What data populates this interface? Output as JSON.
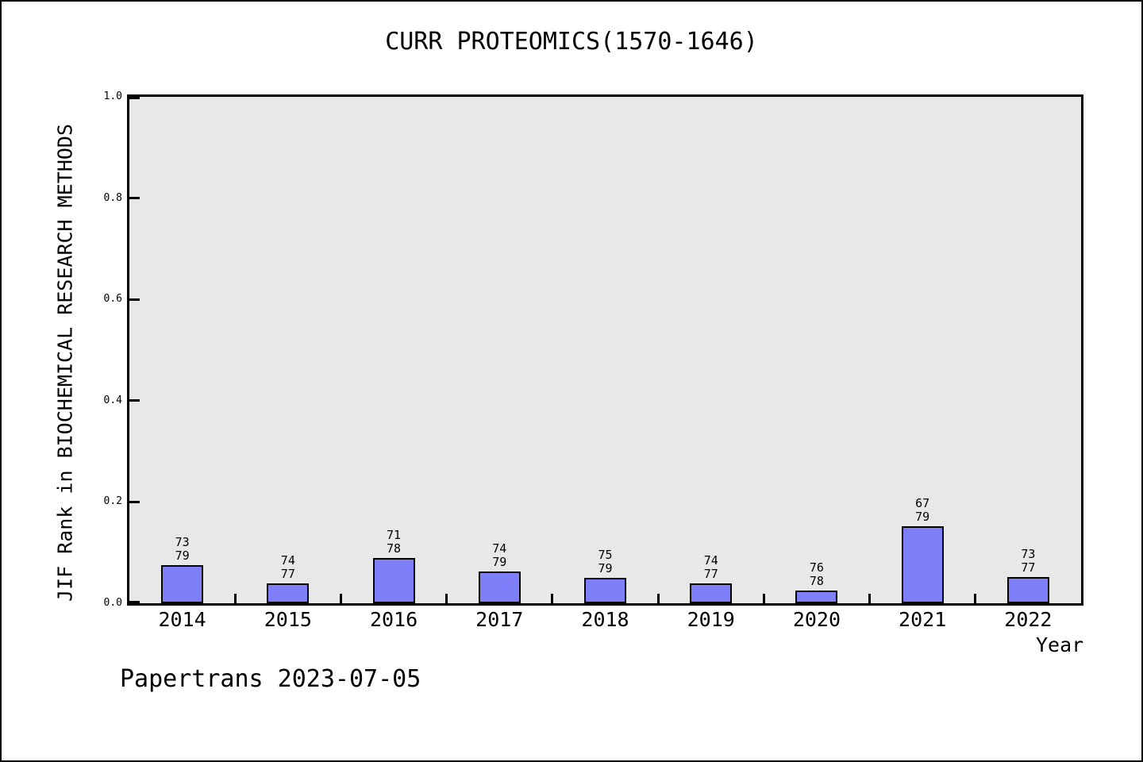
{
  "page": {
    "footer": "Papertrans 2023-07-05"
  },
  "chart_data": {
    "type": "bar",
    "title": "CURR PROTEOMICS(1570-1646)",
    "xlabel": "Year",
    "ylabel": "JIF Rank in BIOCHEMICAL RESEARCH METHODS",
    "ylim": [
      0.0,
      1.0
    ],
    "yticks": [
      "0.0",
      "0.2",
      "0.4",
      "0.6",
      "0.8",
      "1.0"
    ],
    "grid": false,
    "legend_position": "none",
    "plot_background": "#e8e8e8",
    "bar_fill": "#7f7ffa",
    "bar_border": "#000000",
    "categories": [
      "2014",
      "2015",
      "2016",
      "2017",
      "2018",
      "2019",
      "2020",
      "2021",
      "2022"
    ],
    "bars": [
      {
        "year": "2014",
        "rank": "73",
        "total": "79",
        "value": 0.0759
      },
      {
        "year": "2015",
        "rank": "74",
        "total": "77",
        "value": 0.039
      },
      {
        "year": "2016",
        "rank": "71",
        "total": "78",
        "value": 0.0897
      },
      {
        "year": "2017",
        "rank": "74",
        "total": "79",
        "value": 0.0633
      },
      {
        "year": "2018",
        "rank": "75",
        "total": "79",
        "value": 0.0506
      },
      {
        "year": "2019",
        "rank": "74",
        "total": "77",
        "value": 0.039
      },
      {
        "year": "2020",
        "rank": "76",
        "total": "78",
        "value": 0.0256
      },
      {
        "year": "2021",
        "rank": "67",
        "total": "79",
        "value": 0.1519
      },
      {
        "year": "2022",
        "rank": "73",
        "total": "77",
        "value": 0.0519
      }
    ]
  }
}
